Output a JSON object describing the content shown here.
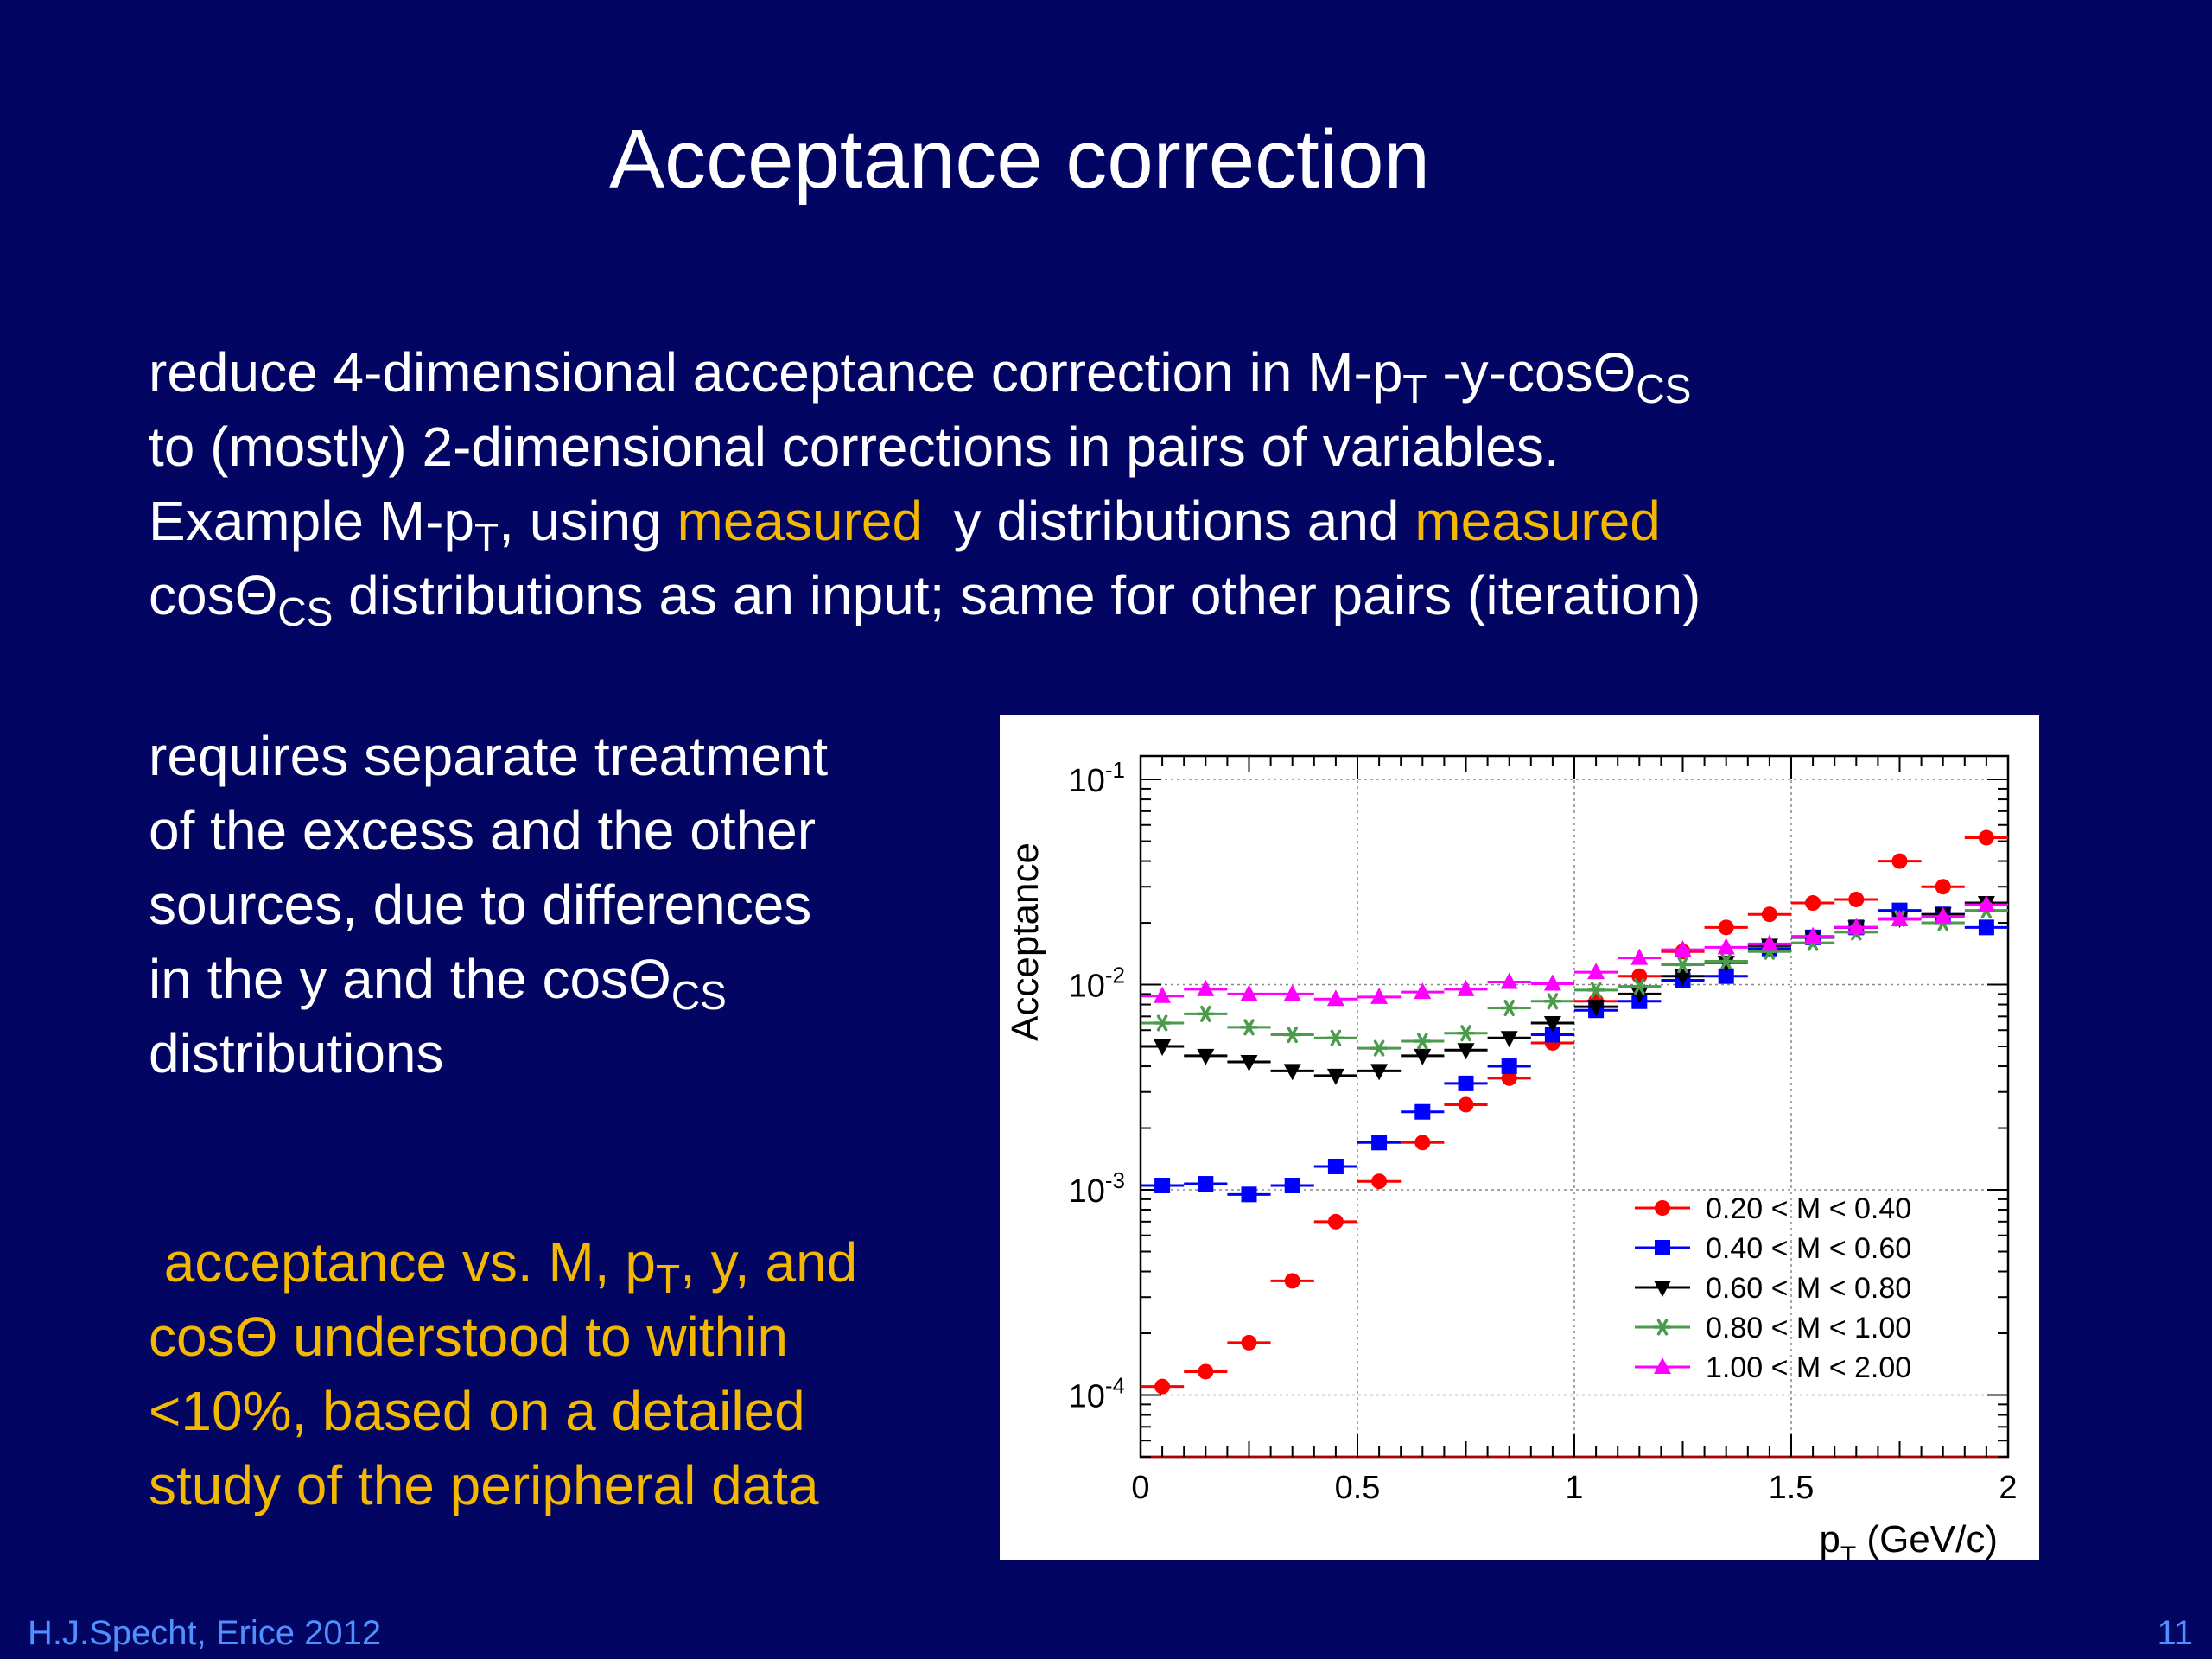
{
  "slide": {
    "title": "Acceptance correction",
    "para1": {
      "l1_a": "reduce 4-dimensional acceptance correction in M-p",
      "l1_sub1": "T",
      "l1_b": " -y-cosΘ",
      "l1_sub2": "CS",
      "l2": "to (mostly) 2-dimensional corrections in pairs of variables.",
      "l3_a": "Example M-p",
      "l3_sub": "T",
      "l3_b": ", using ",
      "l3_hl1": "measured",
      "l3_c": "  y distributions and ",
      "l3_hl2": "measured",
      "l4_a": "cosΘ",
      "l4_sub": "CS",
      "l4_b": " distributions as an input; same for other pairs (iteration)"
    },
    "para2": {
      "l1": "requires separate treatment",
      "l2": "of the excess and the other",
      "l3": "sources, due to differences",
      "l4_a": "in the y and the cosΘ",
      "l4_sub": "CS",
      "l5": "distributions"
    },
    "para3": {
      "l1_a": " acceptance vs. M, p",
      "l1_sub": "T",
      "l1_b": ", y, and",
      "l2": "cosΘ understood to within",
      "l3": "<10%, based on a detailed",
      "l4": "study of the peripheral data"
    },
    "footer_left": "H.J.Specht, Erice 2012",
    "footer_right": "11"
  },
  "colors": {
    "background": "#020561",
    "text": "#ffffff",
    "highlight": "#f5b800",
    "footer": "#4f8fff"
  },
  "chart_data": {
    "type": "scatter",
    "title": "",
    "xlabel_main": "p",
    "xlabel_sub": "T",
    "xlabel_unit": " (GeV/c)",
    "ylabel": "Acceptance",
    "xlim": [
      0,
      2
    ],
    "ylim": [
      5e-05,
      0.13
    ],
    "yscale": "log",
    "grid": true,
    "legend_position": "bottom-right",
    "x_ticks": [
      "0",
      "0.5",
      "1",
      "1.5",
      "2"
    ],
    "y_ticks": [
      {
        "base": "10",
        "exp": "-4",
        "value": 0.0001
      },
      {
        "base": "10",
        "exp": "-3",
        "value": 0.001
      },
      {
        "base": "10",
        "exp": "-2",
        "value": 0.01
      },
      {
        "base": "10",
        "exp": "-1",
        "value": 0.1
      }
    ],
    "x": [
      0.05,
      0.15,
      0.25,
      0.35,
      0.45,
      0.55,
      0.65,
      0.75,
      0.85,
      0.95,
      1.05,
      1.15,
      1.25,
      1.35,
      1.45,
      1.55,
      1.65,
      1.75,
      1.85,
      1.95
    ],
    "series": [
      {
        "name": "0.20 < M < 0.40",
        "color": "#ff0000",
        "marker": "circle",
        "values": [
          0.00011,
          0.00013,
          0.00018,
          0.00036,
          0.0007,
          0.0011,
          0.0017,
          0.0026,
          0.0035,
          0.0052,
          0.0083,
          0.011,
          0.0145,
          0.019,
          0.022,
          0.025,
          0.026,
          0.04,
          0.03,
          0.052
        ]
      },
      {
        "name": "0.40 < M < 0.60",
        "color": "#0000ff",
        "marker": "square",
        "values": [
          0.00105,
          0.00107,
          0.00095,
          0.00105,
          0.0013,
          0.0017,
          0.0024,
          0.0033,
          0.004,
          0.0057,
          0.0075,
          0.0083,
          0.0105,
          0.011,
          0.015,
          0.017,
          0.019,
          0.023,
          0.022,
          0.019
        ]
      },
      {
        "name": "0.60 < M < 0.80",
        "color": "#000000",
        "marker": "triangle-down",
        "values": [
          0.005,
          0.0045,
          0.0042,
          0.0038,
          0.0036,
          0.0038,
          0.0045,
          0.0048,
          0.0055,
          0.0065,
          0.0078,
          0.009,
          0.011,
          0.0128,
          0.0155,
          0.017,
          0.019,
          0.021,
          0.022,
          0.025
        ]
      },
      {
        "name": "0.80 < M < 1.00",
        "color": "#4c9a4c",
        "marker": "star",
        "values": [
          0.0065,
          0.0072,
          0.0062,
          0.0057,
          0.0055,
          0.0049,
          0.0053,
          0.0058,
          0.0077,
          0.0083,
          0.0094,
          0.0098,
          0.0125,
          0.013,
          0.0145,
          0.016,
          0.018,
          0.021,
          0.02,
          0.023
        ]
      },
      {
        "name": "1.00 < M < 2.00",
        "color": "#ff00ff",
        "marker": "triangle-up",
        "values": [
          0.0088,
          0.0095,
          0.009,
          0.009,
          0.0085,
          0.0087,
          0.0092,
          0.0095,
          0.0103,
          0.0101,
          0.0115,
          0.0135,
          0.0148,
          0.0152,
          0.0158,
          0.0172,
          0.019,
          0.0208,
          0.0215,
          0.0245
        ]
      }
    ]
  }
}
